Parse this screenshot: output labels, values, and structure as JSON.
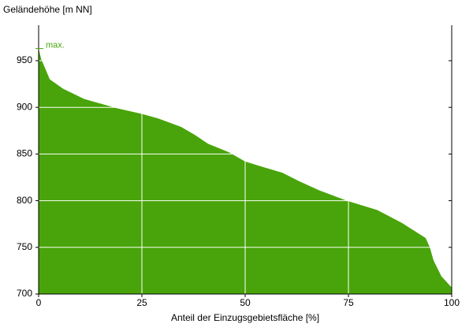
{
  "chart_data": {
    "type": "area",
    "y_label": "Geländehöhe [m NN]",
    "x_label": "Anteil der Einzugsgebietsfläche [%]",
    "annotation": "max.",
    "color": "#48a40a",
    "x": [
      0,
      0.6,
      2.7,
      5.9,
      11,
      19,
      25,
      29,
      34.5,
      38,
      41,
      46,
      50,
      53.6,
      59,
      63,
      68,
      74.6,
      82,
      88,
      93.7,
      94.7,
      95.6,
      97.5,
      100
    ],
    "values": [
      963,
      952,
      930,
      920,
      909,
      899,
      893,
      888,
      879,
      870,
      861,
      852,
      842,
      837,
      830,
      821,
      811,
      800,
      790,
      776,
      760,
      750,
      736,
      719,
      707
    ],
    "xlim": [
      0,
      100
    ],
    "xticks": [
      0,
      25,
      50,
      75,
      100
    ],
    "ylim": [
      700,
      988
    ],
    "yticks": [
      700,
      750,
      800,
      850,
      900,
      950
    ],
    "grid": true
  }
}
